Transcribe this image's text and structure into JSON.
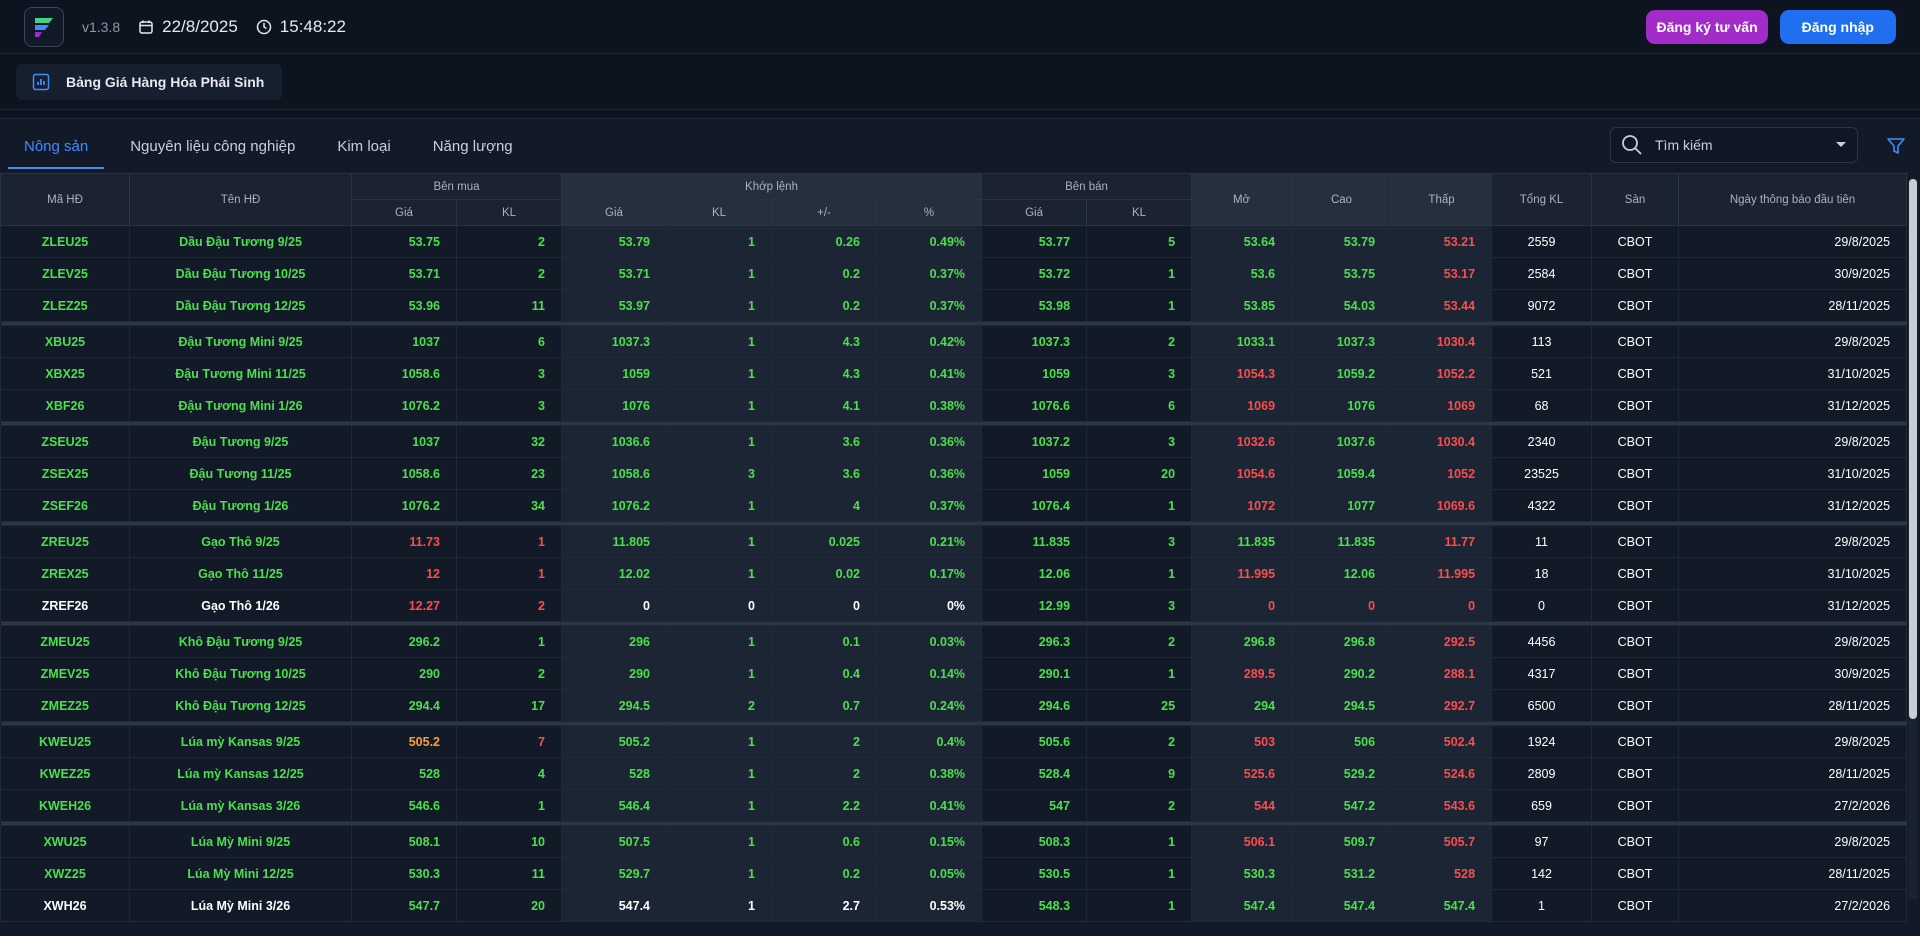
{
  "app": {
    "version": "v1.3.8",
    "date": "22/8/2025",
    "time": "15:48:22",
    "register_label": "Đăng ký tư vấn",
    "login_label": "Đăng nhập"
  },
  "board": {
    "title": "Bảng Giá Hàng Hóa Phái Sinh"
  },
  "tabs": [
    {
      "label": "Nông sản",
      "active": true
    },
    {
      "label": "Nguyên liệu công nghiệp"
    },
    {
      "label": "Kim loại"
    },
    {
      "label": "Năng lượng"
    }
  ],
  "search": {
    "placeholder": "Tìm kiếm"
  },
  "headers": {
    "ma": "Mã HĐ",
    "ten": "Tên HĐ",
    "benmua": "Bên mua",
    "khop": "Khớp lệnh",
    "benban": "Bên bán",
    "mo": "Mở",
    "cao": "Cao",
    "thap": "Thấp",
    "tongkl": "Tổng KL",
    "san": "Sàn",
    "ngay": "Ngày thông báo đầu tiên",
    "gia": "Giá",
    "kl": "KL",
    "pm": "+/-",
    "pct": "%"
  },
  "colors": {
    "up": "#4be04b",
    "down": "#ff4b4b",
    "neutral": "#ffffff",
    "accent": "#3f8cff"
  },
  "groups": [
    [
      {
        "ma": "ZLEU25",
        "ten": "Dầu Đậu Tương 9/25",
        "mg": "53.75",
        "mk": "2",
        "kg": "53.79",
        "kk": "1",
        "pm": "0.26",
        "pct": "0.49%",
        "bg": "53.77",
        "bk": "5",
        "mo": "53.64",
        "cao": "53.79",
        "thap": "53.21",
        "tkl": "2559",
        "san": "CBOT",
        "ngay": "29/8/2025",
        "c": {
          "name": "up",
          "mg": "up",
          "mk": "up",
          "kg": "up",
          "kk": "up",
          "pm": "up",
          "pct": "up",
          "bg": "up",
          "bk": "up",
          "mo": "up",
          "cao": "up",
          "thap": "dn"
        }
      },
      {
        "ma": "ZLEV25",
        "ten": "Dầu Đậu Tương 10/25",
        "mg": "53.71",
        "mk": "2",
        "kg": "53.71",
        "kk": "1",
        "pm": "0.2",
        "pct": "0.37%",
        "bg": "53.72",
        "bk": "1",
        "mo": "53.6",
        "cao": "53.75",
        "thap": "53.17",
        "tkl": "2584",
        "san": "CBOT",
        "ngay": "30/9/2025",
        "c": {
          "name": "up",
          "mg": "up",
          "mk": "up",
          "kg": "up",
          "kk": "up",
          "pm": "up",
          "pct": "up",
          "bg": "up",
          "bk": "up",
          "mo": "up",
          "cao": "up",
          "thap": "dn"
        }
      },
      {
        "ma": "ZLEZ25",
        "ten": "Dầu Đậu Tương 12/25",
        "mg": "53.96",
        "mk": "11",
        "kg": "53.97",
        "kk": "1",
        "pm": "0.2",
        "pct": "0.37%",
        "bg": "53.98",
        "bk": "1",
        "mo": "53.85",
        "cao": "54.03",
        "thap": "53.44",
        "tkl": "9072",
        "san": "CBOT",
        "ngay": "28/11/2025",
        "c": {
          "name": "up",
          "mg": "up",
          "mk": "up",
          "kg": "up",
          "kk": "up",
          "pm": "up",
          "pct": "up",
          "bg": "up",
          "bk": "up",
          "mo": "up",
          "cao": "up",
          "thap": "dn"
        }
      }
    ],
    [
      {
        "ma": "XBU25",
        "ten": "Đậu Tương Mini 9/25",
        "mg": "1037",
        "mk": "6",
        "kg": "1037.3",
        "kk": "1",
        "pm": "4.3",
        "pct": "0.42%",
        "bg": "1037.3",
        "bk": "2",
        "mo": "1033.1",
        "cao": "1037.3",
        "thap": "1030.4",
        "tkl": "113",
        "san": "CBOT",
        "ngay": "29/8/2025",
        "c": {
          "name": "up",
          "mg": "up",
          "mk": "up",
          "kg": "up",
          "kk": "up",
          "pm": "up",
          "pct": "up",
          "bg": "up",
          "bk": "up",
          "mo": "up",
          "cao": "up",
          "thap": "dn"
        }
      },
      {
        "ma": "XBX25",
        "ten": "Đậu Tương Mini 11/25",
        "mg": "1058.6",
        "mk": "3",
        "kg": "1059",
        "kk": "1",
        "pm": "4.3",
        "pct": "0.41%",
        "bg": "1059",
        "bk": "3",
        "mo": "1054.3",
        "cao": "1059.2",
        "thap": "1052.2",
        "tkl": "521",
        "san": "CBOT",
        "ngay": "31/10/2025",
        "c": {
          "name": "up",
          "mg": "up",
          "mk": "up",
          "kg": "up",
          "kk": "up",
          "pm": "up",
          "pct": "up",
          "bg": "up",
          "bk": "up",
          "mo": "dn",
          "cao": "up",
          "thap": "dn"
        }
      },
      {
        "ma": "XBF26",
        "ten": "Đậu Tương Mini 1/26",
        "mg": "1076.2",
        "mk": "3",
        "kg": "1076",
        "kk": "1",
        "pm": "4.1",
        "pct": "0.38%",
        "bg": "1076.6",
        "bk": "6",
        "mo": "1069",
        "cao": "1076",
        "thap": "1069",
        "tkl": "68",
        "san": "CBOT",
        "ngay": "31/12/2025",
        "c": {
          "name": "up",
          "mg": "up",
          "mk": "up",
          "kg": "up",
          "kk": "up",
          "pm": "up",
          "pct": "up",
          "bg": "up",
          "bk": "up",
          "mo": "dn",
          "cao": "up",
          "thap": "dn"
        }
      }
    ],
    [
      {
        "ma": "ZSEU25",
        "ten": "Đậu Tương 9/25",
        "mg": "1037",
        "mk": "32",
        "kg": "1036.6",
        "kk": "1",
        "pm": "3.6",
        "pct": "0.36%",
        "bg": "1037.2",
        "bk": "3",
        "mo": "1032.6",
        "cao": "1037.6",
        "thap": "1030.4",
        "tkl": "2340",
        "san": "CBOT",
        "ngay": "29/8/2025",
        "c": {
          "name": "up",
          "mg": "up",
          "mk": "up",
          "kg": "up",
          "kk": "up",
          "pm": "up",
          "pct": "up",
          "bg": "up",
          "bk": "up",
          "mo": "dn",
          "cao": "up",
          "thap": "dn"
        }
      },
      {
        "ma": "ZSEX25",
        "ten": "Đậu Tương 11/25",
        "mg": "1058.6",
        "mk": "23",
        "kg": "1058.6",
        "kk": "3",
        "pm": "3.6",
        "pct": "0.36%",
        "bg": "1059",
        "bk": "20",
        "mo": "1054.6",
        "cao": "1059.4",
        "thap": "1052",
        "tkl": "23525",
        "san": "CBOT",
        "ngay": "31/10/2025",
        "c": {
          "name": "up",
          "mg": "up",
          "mk": "up",
          "kg": "up",
          "kk": "up",
          "pm": "up",
          "pct": "up",
          "bg": "up",
          "bk": "up",
          "mo": "dn",
          "cao": "up",
          "thap": "dn"
        }
      },
      {
        "ma": "ZSEF26",
        "ten": "Đậu Tương 1/26",
        "mg": "1076.2",
        "mk": "34",
        "kg": "1076.2",
        "kk": "1",
        "pm": "4",
        "pct": "0.37%",
        "bg": "1076.4",
        "bk": "1",
        "mo": "1072",
        "cao": "1077",
        "thap": "1069.6",
        "tkl": "4322",
        "san": "CBOT",
        "ngay": "31/12/2025",
        "c": {
          "name": "up",
          "mg": "up",
          "mk": "up",
          "kg": "up",
          "kk": "up",
          "pm": "up",
          "pct": "up",
          "bg": "up",
          "bk": "up",
          "mo": "dn",
          "cao": "up",
          "thap": "dn"
        }
      }
    ],
    [
      {
        "ma": "ZREU25",
        "ten": "Gạo Thô 9/25",
        "mg": "11.73",
        "mk": "1",
        "kg": "11.805",
        "kk": "1",
        "pm": "0.025",
        "pct": "0.21%",
        "bg": "11.835",
        "bk": "3",
        "mo": "11.835",
        "cao": "11.835",
        "thap": "11.77",
        "tkl": "11",
        "san": "CBOT",
        "ngay": "29/8/2025",
        "c": {
          "name": "up",
          "mg": "dn",
          "mk": "dn",
          "kg": "up",
          "kk": "up",
          "pm": "up",
          "pct": "up",
          "bg": "up",
          "bk": "up",
          "mo": "up",
          "cao": "up",
          "thap": "dn"
        }
      },
      {
        "ma": "ZREX25",
        "ten": "Gạo Thô 11/25",
        "mg": "12",
        "mk": "1",
        "kg": "12.02",
        "kk": "1",
        "pm": "0.02",
        "pct": "0.17%",
        "bg": "12.06",
        "bk": "1",
        "mo": "11.995",
        "cao": "12.06",
        "thap": "11.995",
        "tkl": "18",
        "san": "CBOT",
        "ngay": "31/10/2025",
        "c": {
          "name": "up",
          "mg": "dn",
          "mk": "dn",
          "kg": "up",
          "kk": "up",
          "pm": "up",
          "pct": "up",
          "bg": "up",
          "bk": "up",
          "mo": "dn",
          "cao": "up",
          "thap": "dn"
        }
      },
      {
        "ma": "ZREF26",
        "ten": "Gạo Thô 1/26",
        "mg": "12.27",
        "mk": "2",
        "kg": "0",
        "kk": "0",
        "pm": "0",
        "pct": "0%",
        "bg": "12.99",
        "bk": "3",
        "mo": "0",
        "cao": "0",
        "thap": "0",
        "tkl": "0",
        "san": "CBOT",
        "ngay": "31/12/2025",
        "c": {
          "name": "wh",
          "mg": "dn",
          "mk": "dn",
          "kg": "wh",
          "kk": "wh",
          "pm": "wh",
          "pct": "wh",
          "bg": "up",
          "bk": "up",
          "mo": "dn",
          "cao": "dn",
          "thap": "dn"
        }
      }
    ],
    [
      {
        "ma": "ZMEU25",
        "ten": "Khô Đậu Tương 9/25",
        "mg": "296.2",
        "mk": "1",
        "kg": "296",
        "kk": "1",
        "pm": "0.1",
        "pct": "0.03%",
        "bg": "296.3",
        "bk": "2",
        "mo": "296.8",
        "cao": "296.8",
        "thap": "292.5",
        "tkl": "4456",
        "san": "CBOT",
        "ngay": "29/8/2025",
        "c": {
          "name": "up",
          "mg": "up",
          "mk": "up",
          "kg": "up",
          "kk": "up",
          "pm": "up",
          "pct": "up",
          "bg": "up",
          "bk": "up",
          "mo": "up",
          "cao": "up",
          "thap": "dn"
        }
      },
      {
        "ma": "ZMEV25",
        "ten": "Khô Đậu Tương 10/25",
        "mg": "290",
        "mk": "2",
        "kg": "290",
        "kk": "1",
        "pm": "0.4",
        "pct": "0.14%",
        "bg": "290.1",
        "bk": "1",
        "mo": "289.5",
        "cao": "290.2",
        "thap": "288.1",
        "tkl": "4317",
        "san": "CBOT",
        "ngay": "30/9/2025",
        "c": {
          "name": "up",
          "mg": "up",
          "mk": "up",
          "kg": "up",
          "kk": "up",
          "pm": "up",
          "pct": "up",
          "bg": "up",
          "bk": "up",
          "mo": "dn",
          "cao": "up",
          "thap": "dn"
        }
      },
      {
        "ma": "ZMEZ25",
        "ten": "Khô Đậu Tương 12/25",
        "mg": "294.4",
        "mk": "17",
        "kg": "294.5",
        "kk": "2",
        "pm": "0.7",
        "pct": "0.24%",
        "bg": "294.6",
        "bk": "25",
        "mo": "294",
        "cao": "294.5",
        "thap": "292.7",
        "tkl": "6500",
        "san": "CBOT",
        "ngay": "28/11/2025",
        "c": {
          "name": "up",
          "mg": "up",
          "mk": "up",
          "kg": "up",
          "kk": "up",
          "pm": "up",
          "pct": "up",
          "bg": "up",
          "bk": "up",
          "mo": "up",
          "cao": "up",
          "thap": "dn"
        }
      }
    ],
    [
      {
        "ma": "KWEU25",
        "ten": "Lúa mỳ Kansas 9/25",
        "mg": "505.2",
        "mk": "7",
        "kg": "505.2",
        "kk": "1",
        "pm": "2",
        "pct": "0.4%",
        "bg": "505.6",
        "bk": "2",
        "mo": "503",
        "cao": "506",
        "thap": "502.4",
        "tkl": "1924",
        "san": "CBOT",
        "ngay": "29/8/2025",
        "c": {
          "name": "up",
          "mg": "or",
          "mk": "dn",
          "kg": "up",
          "kk": "up",
          "pm": "up",
          "pct": "up",
          "bg": "up",
          "bk": "up",
          "mo": "dn",
          "cao": "up",
          "thap": "dn"
        }
      },
      {
        "ma": "KWEZ25",
        "ten": "Lúa mỳ Kansas 12/25",
        "mg": "528",
        "mk": "4",
        "kg": "528",
        "kk": "1",
        "pm": "2",
        "pct": "0.38%",
        "bg": "528.4",
        "bk": "9",
        "mo": "525.6",
        "cao": "529.2",
        "thap": "524.6",
        "tkl": "2809",
        "san": "CBOT",
        "ngay": "28/11/2025",
        "c": {
          "name": "up",
          "mg": "up",
          "mk": "up",
          "kg": "up",
          "kk": "up",
          "pm": "up",
          "pct": "up",
          "bg": "up",
          "bk": "up",
          "mo": "dn",
          "cao": "up",
          "thap": "dn"
        }
      },
      {
        "ma": "KWEH26",
        "ten": "Lúa mỳ Kansas 3/26",
        "mg": "546.6",
        "mk": "1",
        "kg": "546.4",
        "kk": "1",
        "pm": "2.2",
        "pct": "0.41%",
        "bg": "547",
        "bk": "2",
        "mo": "544",
        "cao": "547.2",
        "thap": "543.6",
        "tkl": "659",
        "san": "CBOT",
        "ngay": "27/2/2026",
        "c": {
          "name": "up",
          "mg": "up",
          "mk": "up",
          "kg": "up",
          "kk": "up",
          "pm": "up",
          "pct": "up",
          "bg": "up",
          "bk": "up",
          "mo": "dn",
          "cao": "up",
          "thap": "dn"
        }
      }
    ],
    [
      {
        "ma": "XWU25",
        "ten": "Lúa Mỳ Mini 9/25",
        "mg": "508.1",
        "mk": "10",
        "kg": "507.5",
        "kk": "1",
        "pm": "0.6",
        "pct": "0.15%",
        "bg": "508.3",
        "bk": "1",
        "mo": "506.1",
        "cao": "509.7",
        "thap": "505.7",
        "tkl": "97",
        "san": "CBOT",
        "ngay": "29/8/2025",
        "c": {
          "name": "up",
          "mg": "up",
          "mk": "up",
          "kg": "up",
          "kk": "up",
          "pm": "up",
          "pct": "up",
          "bg": "up",
          "bk": "up",
          "mo": "dn",
          "cao": "up",
          "thap": "dn"
        }
      },
      {
        "ma": "XWZ25",
        "ten": "Lúa Mỳ Mini 12/25",
        "mg": "530.3",
        "mk": "11",
        "kg": "529.7",
        "kk": "1",
        "pm": "0.2",
        "pct": "0.05%",
        "bg": "530.5",
        "bk": "1",
        "mo": "530.3",
        "cao": "531.2",
        "thap": "528",
        "tkl": "142",
        "san": "CBOT",
        "ngay": "28/11/2025",
        "c": {
          "name": "up",
          "mg": "up",
          "mk": "up",
          "kg": "up",
          "kk": "up",
          "pm": "up",
          "pct": "up",
          "bg": "up",
          "bk": "up",
          "mo": "up",
          "cao": "up",
          "thap": "dn"
        }
      },
      {
        "ma": "XWH26",
        "ten": "Lúa Mỳ Mini 3/26",
        "mg": "547.7",
        "mk": "20",
        "kg": "547.4",
        "kk": "1",
        "pm": "2.7",
        "pct": "0.53%",
        "bg": "548.3",
        "bk": "1",
        "mo": "547.4",
        "cao": "547.4",
        "thap": "547.4",
        "tkl": "1",
        "san": "CBOT",
        "ngay": "27/2/2026",
        "c": {
          "name": "wh",
          "mg": "up",
          "mk": "up",
          "kg": "wh",
          "kk": "wh",
          "pm": "wh",
          "pct": "wh",
          "bg": "up",
          "bk": "up",
          "mo": "up",
          "cao": "up",
          "thap": "up"
        }
      }
    ]
  ]
}
